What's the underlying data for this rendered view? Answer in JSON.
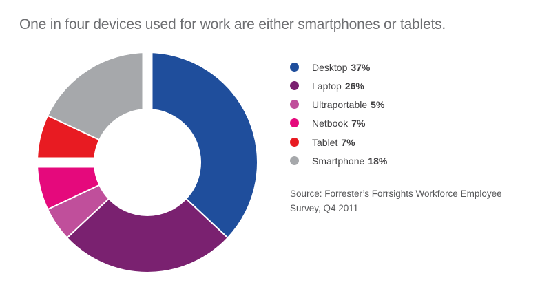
{
  "title": {
    "text": "One in four devices used for work are either smartphones or tablets.",
    "color": "#6D6E71"
  },
  "chart_data": {
    "type": "pie",
    "subtype": "donut",
    "title": "One in four devices used for work are either smartphones or tablets.",
    "unit": "%",
    "segments": [
      {
        "label": "Desktop",
        "value": 37,
        "color": "#1F4E9C"
      },
      {
        "label": "Laptop",
        "value": 26,
        "color": "#7A2170"
      },
      {
        "label": "Ultraportable",
        "value": 5,
        "color": "#C04F9B"
      },
      {
        "label": "Netbook",
        "value": 7,
        "color": "#E5097C"
      },
      {
        "label": "Tablet",
        "value": 7,
        "color": "#E81B22"
      },
      {
        "label": "Smartphone",
        "value": 18,
        "color": "#A6A8AB"
      }
    ],
    "start_angle_deg": 0,
    "direction": "clockwise",
    "separator_angles_deg": [
      0,
      270
    ],
    "separator_color": "#ffffff",
    "slice_stroke_color": "#ffffff",
    "legend_position": "right"
  },
  "legend": {
    "items": [
      {
        "label": "Desktop",
        "pct": "37%",
        "color": "#1F4E9C"
      },
      {
        "label": "Laptop",
        "pct": "26%",
        "color": "#7A2170"
      },
      {
        "label": "Ultraportable",
        "pct": "5%",
        "color": "#C04F9B"
      },
      {
        "label": "Netbook",
        "pct": "7%",
        "color": "#E5097C"
      },
      {
        "label": "Tablet",
        "pct": "7%",
        "color": "#E81B22"
      },
      {
        "label": "Smartphone",
        "pct": "18%",
        "color": "#A6A8AB"
      }
    ],
    "divider_after": [
      3,
      5
    ],
    "divider_color": "#939598"
  },
  "source": {
    "line1": "Source: Forrester’s Forrsights Workforce Employee",
    "line2": "Survey, Q4 2011"
  }
}
